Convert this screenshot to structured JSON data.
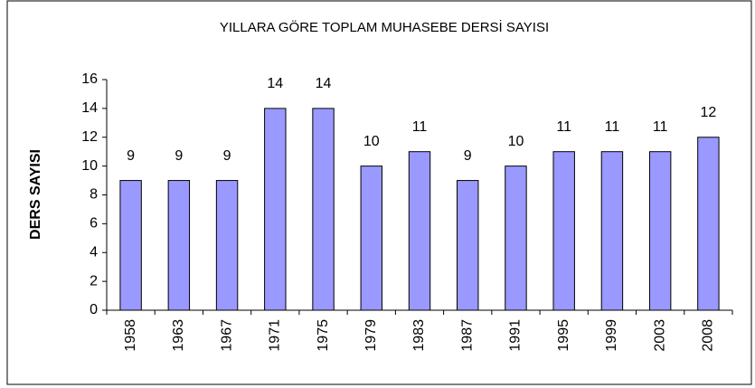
{
  "chart_data": {
    "type": "bar",
    "title": "YILLARA GÖRE TOPLAM MUHASEBE DERSİ SAYISI",
    "y_label": "DERS SAYISI",
    "categories": [
      "1958",
      "1963",
      "1967",
      "1971",
      "1975",
      "1979",
      "1983",
      "1987",
      "1991",
      "1995",
      "1999",
      "2003",
      "2008"
    ],
    "values": [
      9,
      9,
      9,
      14,
      14,
      10,
      11,
      9,
      10,
      11,
      11,
      11,
      12
    ],
    "color": "#9999ff",
    "ylim": [
      0,
      16
    ],
    "yticks": [
      0,
      2,
      4,
      6,
      8,
      10,
      12,
      14,
      16
    ],
    "grid": false
  }
}
